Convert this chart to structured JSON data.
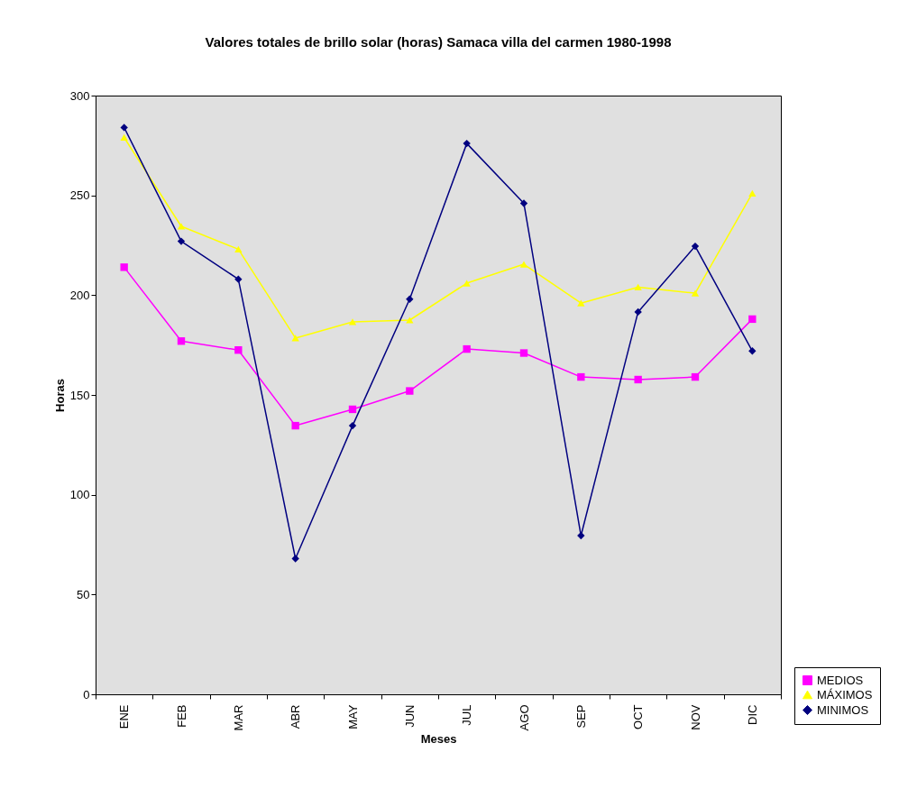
{
  "chart_data": {
    "type": "line",
    "title": "Valores totales de brillo solar (horas) Samaca villa del carmen 1980-1998",
    "xlabel": "Meses",
    "ylabel": "Horas",
    "categories": [
      "ENE",
      "FEB",
      "MAR",
      "ABR",
      "MAY",
      "JUN",
      "JUL",
      "AGO",
      "SEP",
      "OCT",
      "NOV",
      "DIC"
    ],
    "series": [
      {
        "name": "MEDIOS",
        "color": "#ff00ff",
        "marker": "square",
        "values": [
          214,
          177,
          172.5,
          134.6,
          142.8,
          152,
          173,
          171,
          159,
          157.7,
          159,
          188
        ]
      },
      {
        "name": "MÁXIMOS",
        "color": "#ffff00",
        "marker": "triangle",
        "values": [
          279,
          234.5,
          223,
          178.5,
          186.6,
          187.5,
          206,
          215.5,
          196,
          204,
          201,
          251
        ]
      },
      {
        "name": "MINIMOS",
        "color": "#000080",
        "marker": "diamond",
        "values": [
          284,
          227,
          208,
          68,
          134.6,
          198,
          276,
          246,
          79.5,
          191.6,
          224.5,
          172
        ]
      }
    ],
    "ylim": [
      0,
      300
    ],
    "yticks": [
      0,
      50,
      100,
      150,
      200,
      250,
      300
    ],
    "grid": false,
    "legend": "bottom right",
    "line_style": "solid"
  }
}
